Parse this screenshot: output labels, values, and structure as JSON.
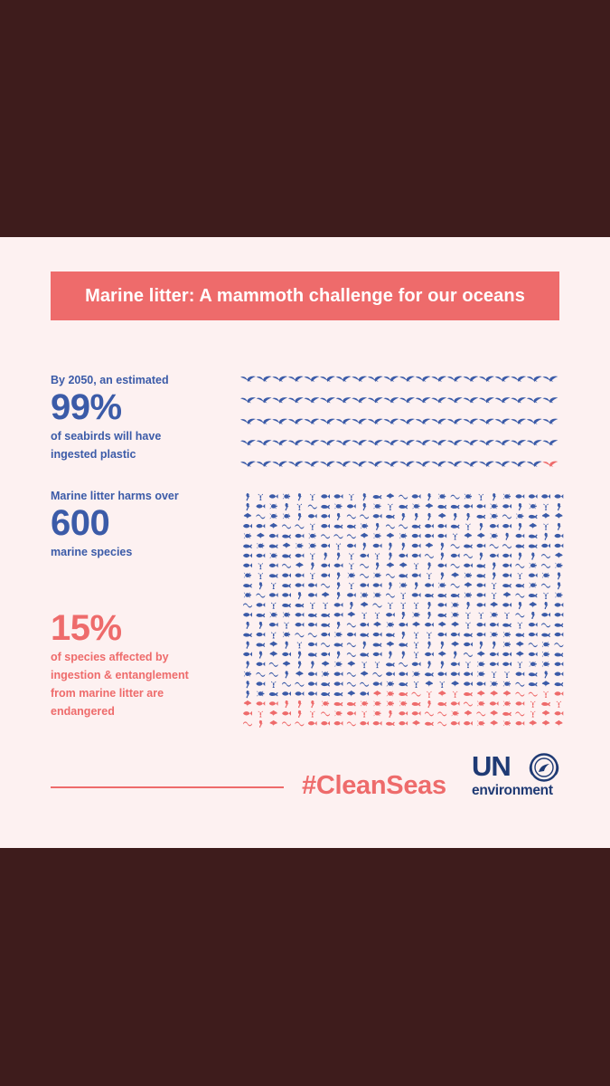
{
  "banner": {
    "title": "Marine litter: A mammoth challenge for our oceans"
  },
  "stats": [
    {
      "pre": "By 2050, an estimated",
      "value": "99%",
      "desc1": "of seabirds will have",
      "desc2": "ingested plastic"
    },
    {
      "pre": "Marine litter harms over",
      "value": "600",
      "desc1": "marine species"
    },
    {
      "value": "15%",
      "desc1": "of species affected by",
      "desc2": "ingestion & entanglement",
      "desc3": "from marine litter are",
      "desc4": "endangered"
    }
  ],
  "footer": {
    "hashtag": "#CleanSeas",
    "logo_un": "UN",
    "logo_env": "environment"
  },
  "colors": {
    "background": "#3e1c1c",
    "card": "#fdf1f1",
    "accent": "#ee6b6b",
    "blue": "#3b5ba8",
    "logo": "#1f3a74"
  },
  "chart_data": [
    {
      "type": "pictogram",
      "title": "seabirds",
      "total_icons": 100,
      "highlighted_icons": 1,
      "highlighted_meaning_percent": 1,
      "affected_percent": 99,
      "icon": "seabird-icon",
      "colors": {
        "affected": "#3b5ba8",
        "highlight": "#ee6b6b"
      }
    },
    {
      "type": "pictogram",
      "title": "marine species",
      "total_icons": 600,
      "endangered_percent": 15,
      "icon": "marine-species-icon",
      "colors": {
        "species": "#3b5ba8",
        "endangered": "#ee6b6b"
      }
    }
  ]
}
